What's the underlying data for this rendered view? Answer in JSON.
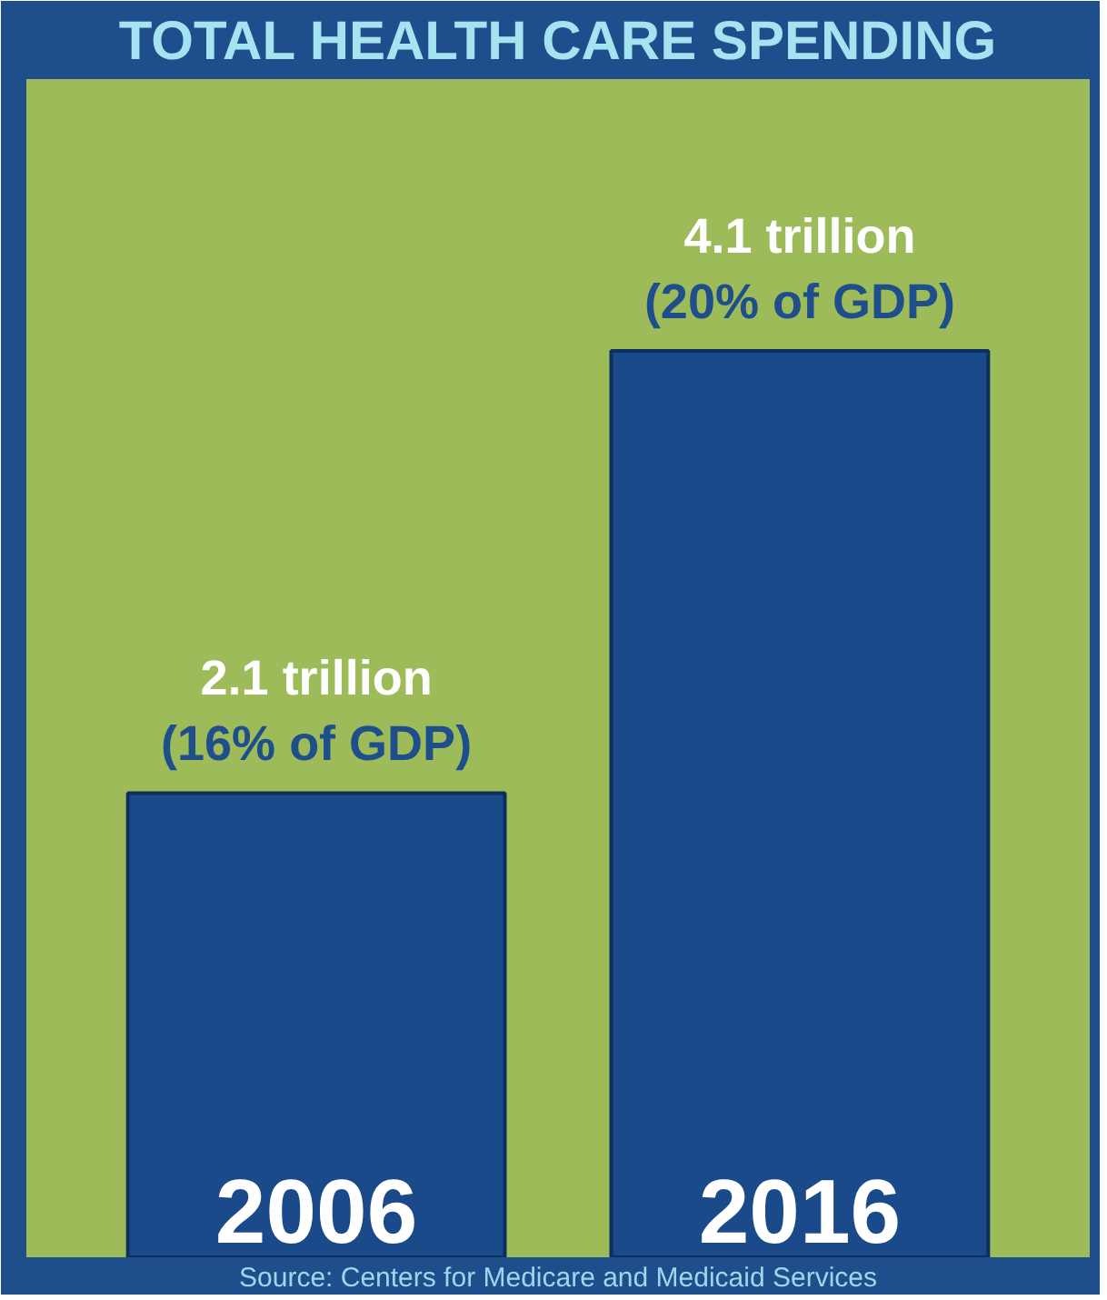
{
  "chart_data": {
    "type": "bar",
    "title": "TOTAL HEALTH CARE SPENDING",
    "categories": [
      "2006",
      "2016"
    ],
    "values": [
      2.1,
      4.1
    ],
    "value_labels": [
      "2.1 trillion\n(16% of GDP)",
      "4.1 trillion\n(20% of GDP)"
    ],
    "color": "#1a4a8a",
    "annotations": [
      "Source: Centers for Medicare and Medicaid Services"
    ]
  }
}
